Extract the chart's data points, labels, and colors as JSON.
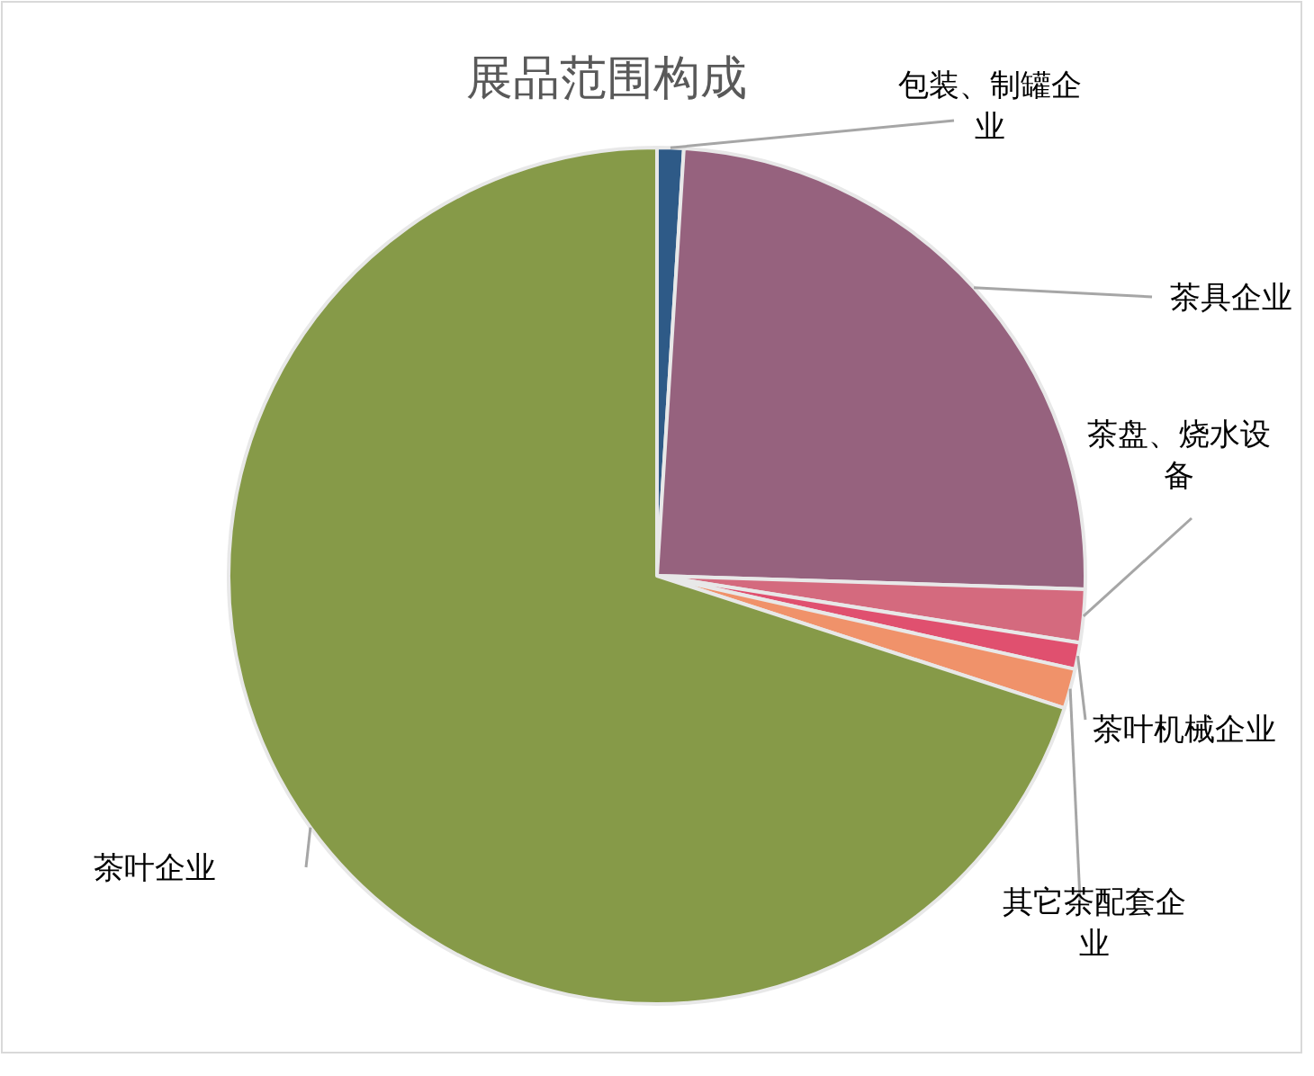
{
  "chart_data": {
    "type": "pie",
    "title": "展品范围构成",
    "categories": [
      "包装、制罐企业",
      "茶具企业",
      "茶盘、烧水设备",
      "茶叶机械企业",
      "其它茶配套企业",
      "茶叶企业"
    ],
    "values": [
      1,
      24.5,
      2,
      1,
      1.5,
      70
    ],
    "colors": [
      "#2e5a87",
      "#96627e",
      "#d46a7e",
      "#e0506f",
      "#f0926a",
      "#869a48"
    ]
  }
}
